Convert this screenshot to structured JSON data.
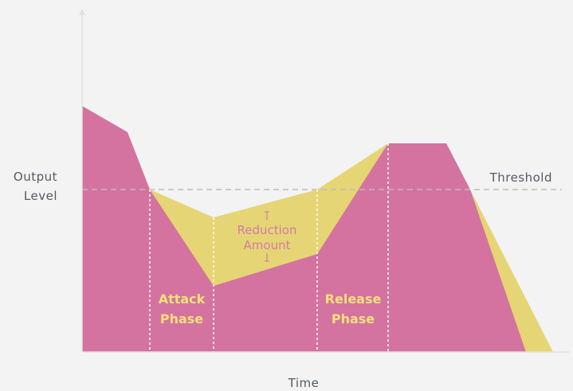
{
  "labels": {
    "y_axis_line1": "Output",
    "y_axis_line2": "Level",
    "x_axis": "Time",
    "threshold": "Threshold",
    "reduction_line1": "Reduction",
    "reduction_line2": "Amount",
    "attack_line1": "Attack",
    "attack_line2": "Phase",
    "release_line1": "Release",
    "release_line2": "Phase"
  },
  "colors": {
    "background": "#f3f3f4",
    "input_signal": "#e6d575",
    "output_signal": "#d4739f",
    "axis": "#e2e2e2",
    "threshold_line": "#bdbdbd",
    "phase_divider": "#ffffff",
    "label_text": "#555a60",
    "phase_text": "#f6e07a",
    "reduction_text": "#d67aa6"
  }
}
